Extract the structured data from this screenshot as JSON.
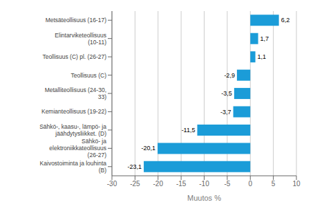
{
  "chart_data": {
    "type": "bar",
    "orientation": "horizontal",
    "categories": [
      "Kaivostoiminta  ja louhinta (B)",
      "Sähkö- ja elektroniikkateollisuus (26-27)",
      "Sähkö-, kaasu-, lämpö- ja jäähdytysliikket. (D)",
      "Kemianteollisuus (19-22)",
      "Metalliteollisuus (24-30, 33)",
      "Teollisuus (C)",
      "Teollisuus (C) pl. (26-27)",
      "Elintarviketeollisuus (10-11)",
      "Metsäteollisuus (16-17)"
    ],
    "values": [
      -23.1,
      -20.1,
      -11.5,
      -3.7,
      -3.5,
      -2.9,
      1.1,
      1.7,
      6.2
    ],
    "value_labels": [
      "-23,1",
      "-20,1",
      "-11,5",
      "-3,7",
      "-3,5",
      "-2,9",
      "1,1",
      "1,7",
      "6,2"
    ],
    "data_labels": true,
    "color": "#1b9cd8",
    "xlabel": "Muutos %",
    "xlim": [
      -30,
      10
    ],
    "xticks": [
      -30,
      -25,
      -20,
      -15,
      -10,
      -5,
      0,
      5,
      10
    ],
    "grid": true
  }
}
